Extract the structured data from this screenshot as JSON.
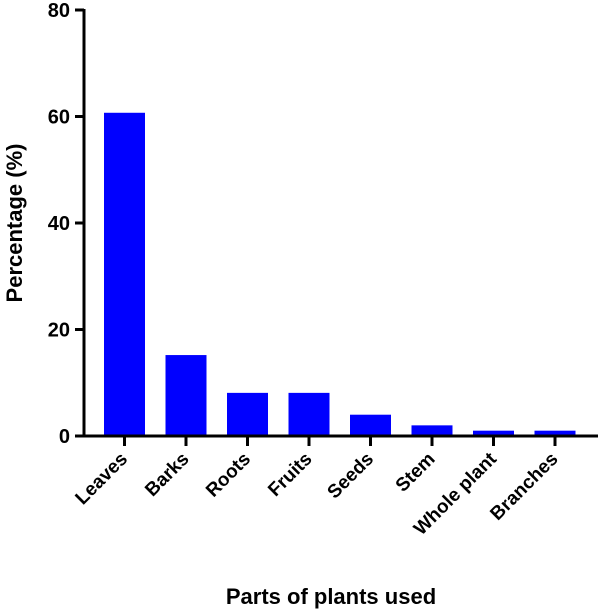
{
  "chart_data": {
    "type": "bar",
    "title": "",
    "xlabel": "Parts of plants used",
    "ylabel": "Percentage (%)",
    "ylim": [
      0,
      80
    ],
    "yticks": [
      0,
      20,
      40,
      60,
      80
    ],
    "categories": [
      "Leaves",
      "Barks",
      "Roots",
      "Fruits",
      "Seeds",
      "Stem",
      "Whole plant",
      "Branches"
    ],
    "values": [
      60.7,
      15.2,
      8.1,
      8.1,
      4.0,
      2.0,
      1.0,
      1.0
    ],
    "bar_color": "#0000ff",
    "grid": false,
    "legend": "none"
  }
}
